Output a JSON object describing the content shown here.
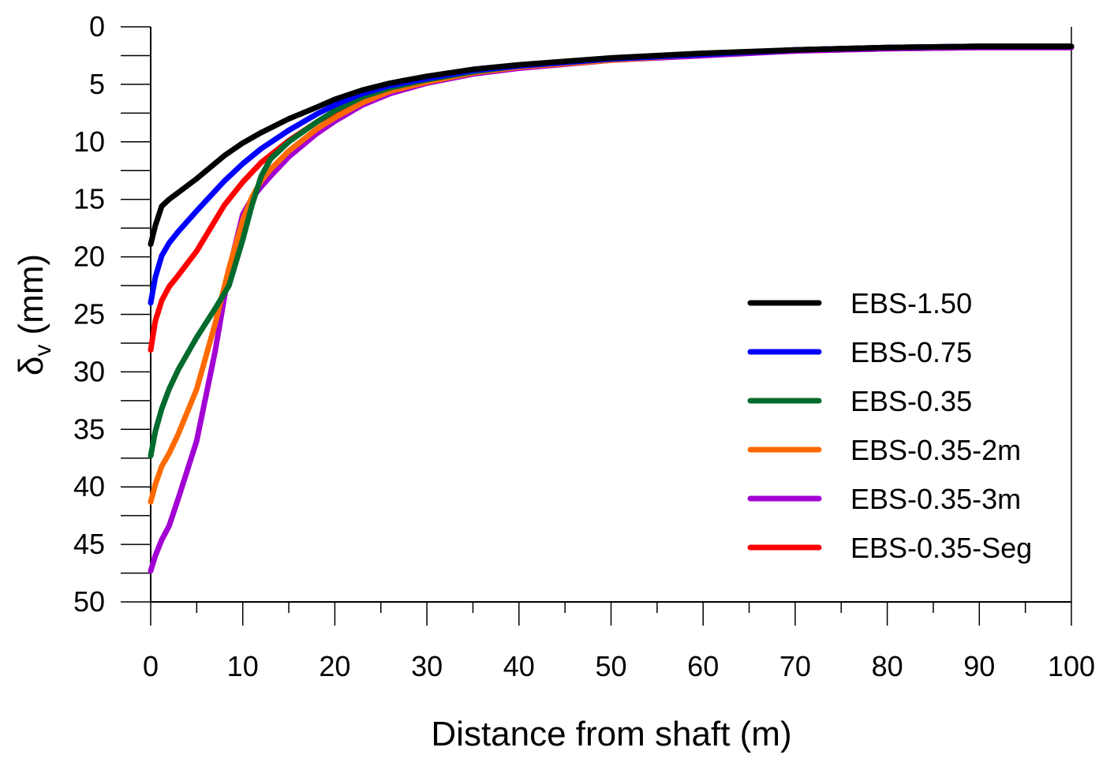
{
  "chart_data": {
    "type": "line",
    "title": "",
    "xlabel": "Distance from shaft (m)",
    "ylabel_main": "δ",
    "ylabel_sub": "v",
    "ylabel_unit": "(mm)",
    "xlim": [
      0,
      100
    ],
    "ylim": [
      0,
      50
    ],
    "y_inverted": true,
    "x_ticks": [
      0,
      10,
      20,
      30,
      40,
      50,
      60,
      70,
      80,
      90,
      100
    ],
    "y_ticks": [
      0,
      5,
      10,
      15,
      20,
      25,
      30,
      35,
      40,
      45,
      50
    ],
    "grid": false,
    "legend_position": "center-right",
    "series": [
      {
        "name": "EBS-1.50",
        "color": "#000000",
        "x": [
          0,
          0.5,
          1.2,
          2,
          3,
          5,
          8,
          10,
          12,
          15,
          18,
          20,
          23,
          26,
          30,
          35,
          40,
          50,
          60,
          70,
          80,
          90,
          100
        ],
        "y": [
          18.9,
          17.3,
          15.6,
          15.0,
          14.4,
          13.2,
          11.2,
          10.1,
          9.2,
          8.0,
          7.0,
          6.3,
          5.5,
          4.9,
          4.3,
          3.7,
          3.3,
          2.7,
          2.3,
          2.0,
          1.8,
          1.7,
          1.7
        ]
      },
      {
        "name": "EBS-0.75",
        "color": "#0000ff",
        "x": [
          0,
          0.5,
          1.2,
          2,
          3,
          5,
          8,
          10,
          12,
          15,
          18,
          20,
          23,
          26,
          30,
          35,
          40,
          50,
          60,
          70,
          80,
          90,
          100
        ],
        "y": [
          24.0,
          21.8,
          19.9,
          18.8,
          17.8,
          16.0,
          13.4,
          11.9,
          10.6,
          9.0,
          7.6,
          6.8,
          5.8,
          5.1,
          4.5,
          3.8,
          3.4,
          2.8,
          2.4,
          2.0,
          1.8,
          1.7,
          1.7
        ]
      },
      {
        "name": "EBS-0.35",
        "color": "#006b2d",
        "x": [
          0,
          0.5,
          1.2,
          2,
          3,
          5,
          7,
          8.5,
          10,
          11,
          12,
          13,
          15,
          18,
          20,
          23,
          26,
          30,
          35,
          40,
          50,
          60,
          70,
          80,
          90,
          100
        ],
        "y": [
          37.3,
          35.2,
          33.2,
          31.5,
          29.8,
          27.0,
          24.5,
          22.5,
          18.5,
          15.5,
          13.0,
          11.5,
          10.0,
          8.3,
          7.3,
          6.1,
          5.3,
          4.6,
          3.9,
          3.4,
          2.8,
          2.4,
          2.0,
          1.8,
          1.7,
          1.7
        ]
      },
      {
        "name": "EBS-0.35-2m",
        "color": "#ff6a00",
        "x": [
          0,
          0.5,
          1.2,
          2,
          3,
          5,
          7,
          8.5,
          10,
          11,
          12,
          13,
          15,
          18,
          20,
          23,
          26,
          30,
          35,
          40,
          50,
          60,
          70,
          80,
          90,
          100
        ],
        "y": [
          41.3,
          39.8,
          38.2,
          37.1,
          35.4,
          31.5,
          25.8,
          21.0,
          16.8,
          14.8,
          13.4,
          12.4,
          10.8,
          8.9,
          7.9,
          6.6,
          5.6,
          4.8,
          4.0,
          3.5,
          2.9,
          2.4,
          2.0,
          1.8,
          1.7,
          1.7
        ]
      },
      {
        "name": "EBS-0.35-3m",
        "color": "#a300d4",
        "x": [
          0,
          0.5,
          1.2,
          2,
          3,
          5,
          7,
          8.5,
          10,
          11,
          12,
          13,
          15,
          18,
          20,
          23,
          26,
          30,
          35,
          40,
          50,
          60,
          70,
          80,
          90,
          100
        ],
        "y": [
          47.3,
          46.0,
          44.6,
          43.4,
          41.0,
          36.0,
          28.2,
          21.2,
          16.3,
          14.9,
          13.9,
          13.0,
          11.3,
          9.3,
          8.2,
          6.8,
          5.8,
          4.9,
          4.1,
          3.6,
          2.9,
          2.5,
          2.1,
          1.9,
          1.8,
          1.8
        ]
      },
      {
        "name": "EBS-0.35-Seg",
        "color": "#ff0000",
        "x": [
          0,
          0.5,
          1.2,
          2,
          3,
          5,
          8,
          10,
          12,
          15,
          18,
          20,
          23,
          26,
          30,
          35,
          40,
          50,
          60,
          70,
          80,
          90,
          100
        ],
        "y": [
          28.1,
          25.6,
          23.8,
          22.6,
          21.6,
          19.5,
          15.5,
          13.5,
          11.8,
          9.9,
          8.3,
          7.4,
          6.3,
          5.5,
          4.7,
          4.0,
          3.5,
          2.9,
          2.4,
          2.1,
          1.9,
          1.8,
          1.8
        ]
      }
    ]
  }
}
